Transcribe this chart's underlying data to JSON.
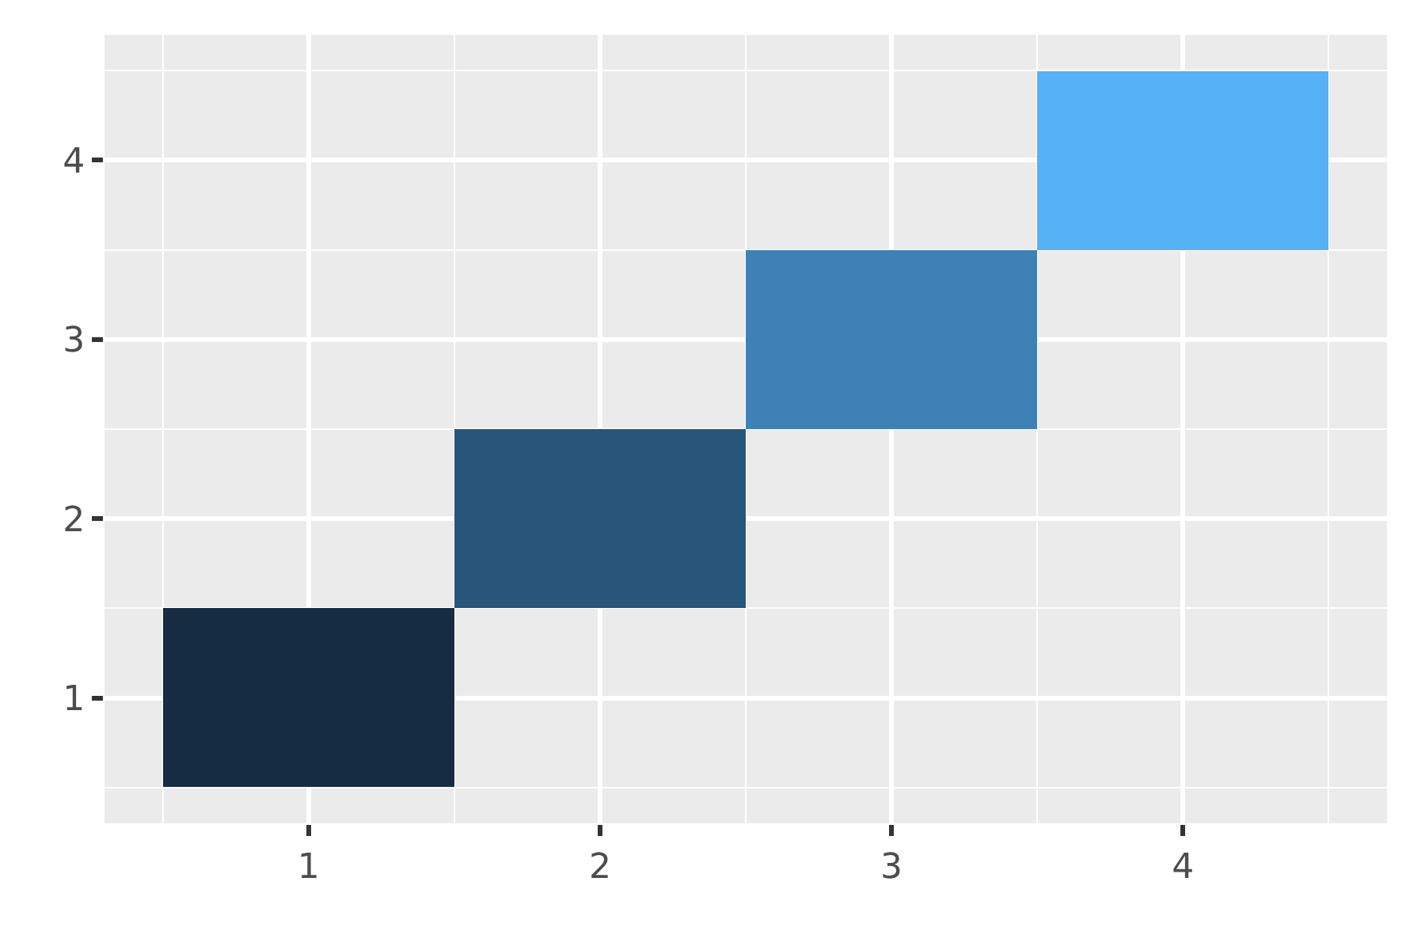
{
  "chart_data": {
    "type": "bar",
    "x": [
      1,
      2,
      3,
      4
    ],
    "base": [
      0.5,
      1.5,
      2.5,
      3.5
    ],
    "values": [
      1,
      1,
      1,
      1
    ],
    "colors": [
      "#162c43",
      "#27567a",
      "#3e81b7",
      "#56b1f7"
    ],
    "xlim": [
      0.3,
      4.7
    ],
    "xticks": [
      1,
      2,
      3,
      4
    ],
    "ylim": [
      0.3,
      4.7
    ],
    "yticks": [
      1,
      2,
      3,
      4
    ],
    "grid": true
  }
}
